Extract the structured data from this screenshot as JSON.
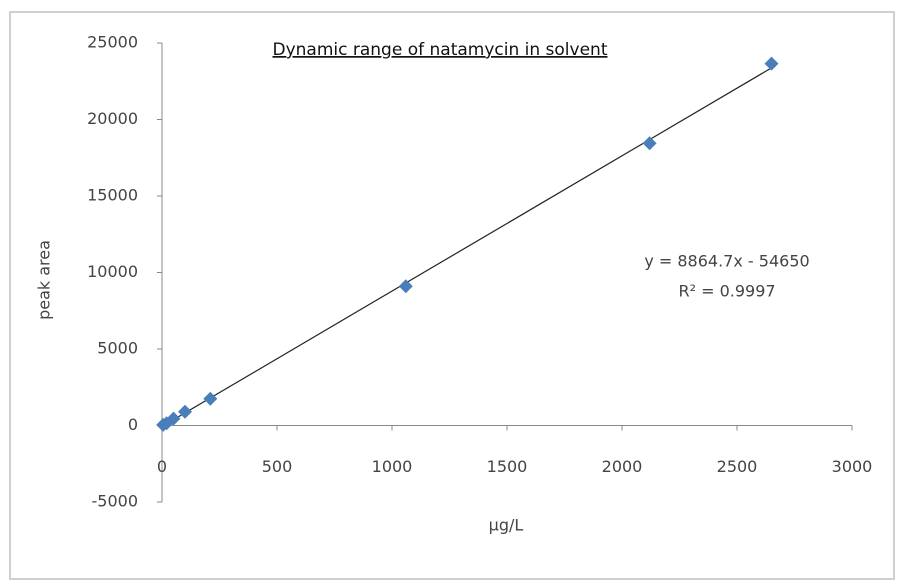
{
  "chart_data": {
    "type": "scatter",
    "title": "Dynamic range of natamycin in solvent",
    "x_label": "µg/L",
    "y_label": "peak area",
    "annotations": [
      "y = 8864.7x - 54650",
      "R² = 0.9997"
    ],
    "series": [
      {
        "color": "#4a7ebb",
        "x": [
          5,
          20,
          50,
          100,
          210,
          1060,
          2120,
          2650
        ],
        "values": [
          40,
          150,
          450,
          900,
          1750,
          9100,
          18450,
          23650
        ]
      }
    ],
    "trendline": true,
    "xlim": [
      0,
      3000
    ],
    "xticks": [
      0,
      500,
      1000,
      1500,
      2000,
      2500,
      3000
    ],
    "ylim": [
      -5000,
      25000
    ],
    "yticks": [
      -5000,
      0,
      5000,
      10000,
      15000,
      20000,
      25000
    ],
    "grid": false
  }
}
